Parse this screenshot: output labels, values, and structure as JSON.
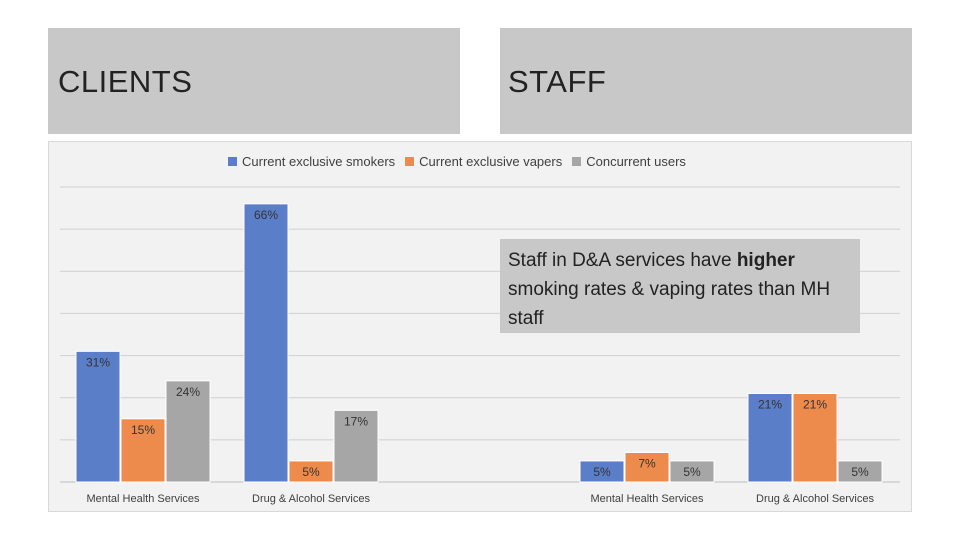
{
  "headers": {
    "clients": "CLIENTS",
    "staff": "STAFF"
  },
  "callout": {
    "before": "Staff in D&A services have ",
    "emphasis": "higher",
    "after": " smoking rates & vaping rates than MH staff"
  },
  "colors": {
    "smokers": "#5b7ec9",
    "vapers": "#ed8b4d",
    "concurrent": "#a6a6a6"
  },
  "chart_data": {
    "type": "bar",
    "title": "",
    "xlabel": "",
    "ylabel": "",
    "ylim": [
      0,
      70
    ],
    "grid": true,
    "legend_position": "top",
    "series_names": [
      "Current exclusive smokers",
      "Current exclusive vapers",
      "Concurrent users"
    ],
    "groups": [
      {
        "panel": "CLIENTS",
        "category": "Mental Health Services",
        "values": [
          31,
          15,
          24
        ],
        "labels": [
          "31%",
          "15%",
          "24%"
        ]
      },
      {
        "panel": "CLIENTS",
        "category": "Drug & Alcohol Services",
        "values": [
          66,
          5,
          17
        ],
        "labels": [
          "66%",
          "5%",
          "17%"
        ]
      },
      {
        "panel": "STAFF",
        "category": "Mental Health Services",
        "values": [
          5,
          7,
          5
        ],
        "labels": [
          "5%",
          "7%",
          "5%"
        ]
      },
      {
        "panel": "STAFF",
        "category": "Drug & Alcohol Services",
        "values": [
          21,
          21,
          5
        ],
        "labels": [
          "21%",
          "21%",
          "5%"
        ]
      }
    ]
  }
}
